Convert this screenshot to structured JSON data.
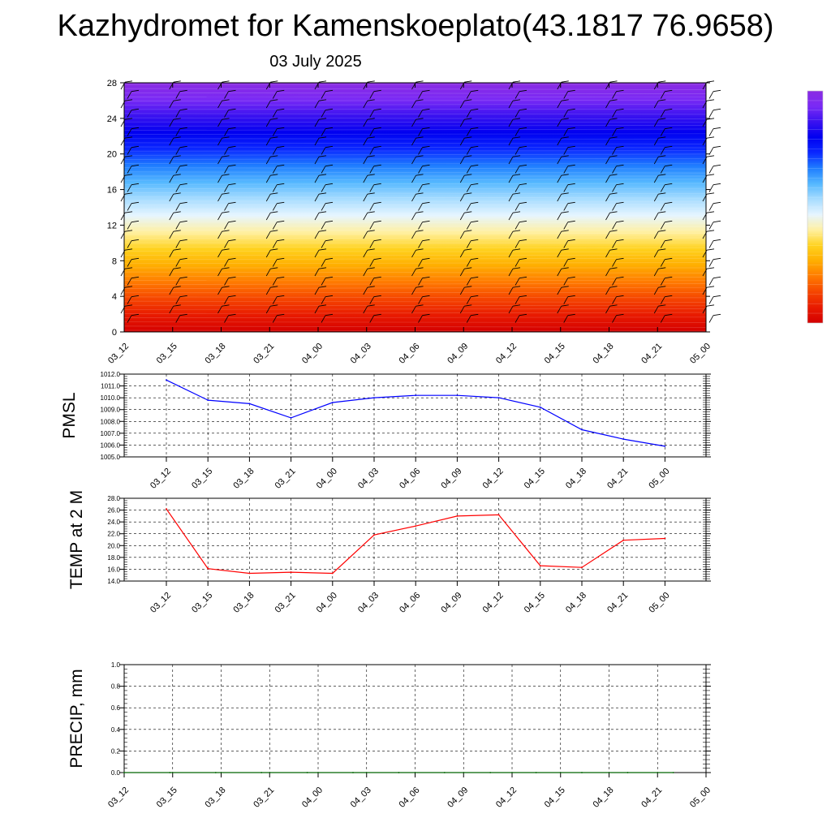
{
  "title": "Kazhydromet for Kamenskoeplato(43.1817 76.9658)",
  "subtitle": "03 July 2025",
  "time_labels": [
    "03_12",
    "03_15",
    "03_18",
    "03_21",
    "04_00",
    "04_03",
    "04_06",
    "04_09",
    "04_12",
    "04_15",
    "04_18",
    "04_21",
    "05_00"
  ],
  "colors": {
    "pmsl_line": "#0000ff",
    "temp_line": "#ff0000",
    "precip_line": "#006400",
    "profile_bands": [
      "#d40000",
      "#e81a00",
      "#f54500",
      "#ff7a00",
      "#ffae00",
      "#ffd21e",
      "#fff0a0",
      "#e6f5ff",
      "#a7dcff",
      "#55b8ff",
      "#1f7dff",
      "#0a28ff",
      "#0000f0",
      "#3a12f0",
      "#7a2af5",
      "#8a2be2"
    ]
  },
  "chart_data": [
    {
      "type": "heatmap",
      "name": "vertical-profile",
      "ylim": [
        0,
        28
      ],
      "yticks": [
        0,
        4,
        8,
        12,
        16,
        20,
        24,
        28
      ],
      "x": [
        "03_12",
        "03_15",
        "03_18",
        "03_21",
        "04_00",
        "04_03",
        "04_06",
        "04_09",
        "04_12",
        "04_15",
        "04_18",
        "04_21",
        "05_00"
      ],
      "description_colors": "red near surface to violet aloft",
      "wind_barbs": true
    },
    {
      "type": "line",
      "name": "pmsl",
      "ylabel": "PMSL",
      "ylim": [
        1005.0,
        1012.0
      ],
      "yticks": [
        "1005.0",
        "1006.0",
        "1007.0",
        "1008.0",
        "1009.0",
        "1010.0",
        "1011.0",
        "1012.0"
      ],
      "x": [
        "03_12",
        "03_15",
        "03_18",
        "03_21",
        "04_00",
        "04_03",
        "04_06",
        "04_09",
        "04_12",
        "04_15",
        "04_18",
        "04_21",
        "05_00"
      ],
      "values": [
        1011.5,
        1009.8,
        1009.5,
        1008.3,
        1009.6,
        1010.0,
        1010.2,
        1010.2,
        1010.0,
        1009.2,
        1007.3,
        1006.5,
        1005.9
      ],
      "grid": true
    },
    {
      "type": "line",
      "name": "temp",
      "ylabel": "TEMP at 2 M",
      "ylim": [
        14.0,
        28.0
      ],
      "yticks": [
        "14.0",
        "16.0",
        "18.0",
        "20.0",
        "22.0",
        "24.0",
        "26.0",
        "28.0"
      ],
      "x": [
        "03_12",
        "03_15",
        "03_18",
        "03_21",
        "04_00",
        "04_03",
        "04_06",
        "04_09",
        "04_12",
        "04_15",
        "04_18",
        "04_21",
        "05_00"
      ],
      "values": [
        26.2,
        16.1,
        15.3,
        15.5,
        15.3,
        21.8,
        23.3,
        25.0,
        25.2,
        16.6,
        16.3,
        20.9,
        21.2
      ],
      "grid": true
    },
    {
      "type": "line",
      "name": "precip",
      "ylabel": "PRECIP, mm",
      "ylim": [
        0.0,
        1.0
      ],
      "yticks": [
        "0.0",
        "0.2",
        "0.4",
        "0.6",
        "0.8",
        "1.0"
      ],
      "x": [
        "03_12",
        "03_15",
        "03_18",
        "03_21",
        "04_00",
        "04_03",
        "04_06",
        "04_09",
        "04_12",
        "04_15",
        "04_18",
        "04_21",
        "05_00"
      ],
      "values": [
        0,
        0,
        0,
        0,
        0,
        0,
        0,
        0,
        0,
        0,
        0,
        0,
        0
      ],
      "grid": true
    }
  ]
}
